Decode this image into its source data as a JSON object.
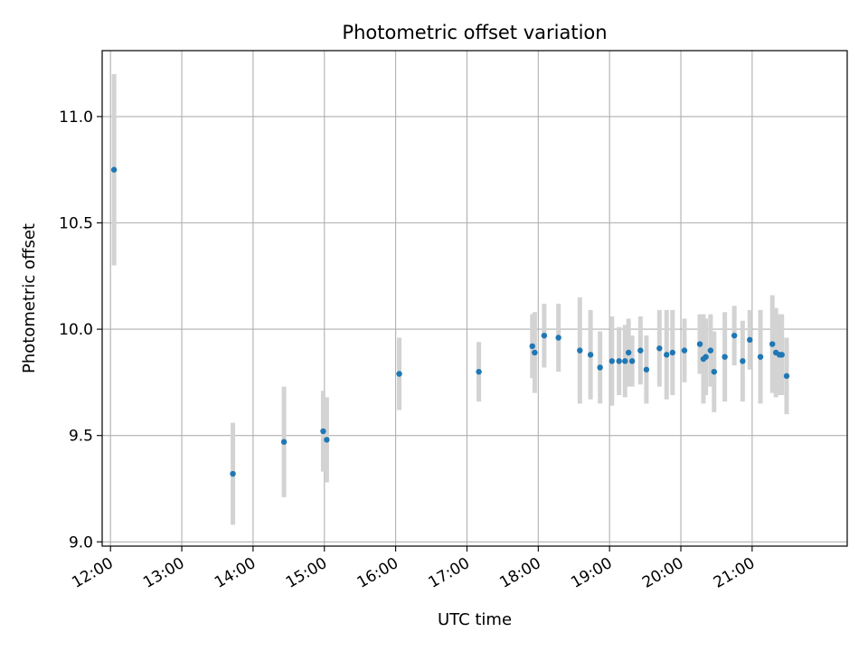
{
  "chart_data": {
    "type": "scatter",
    "title": "Photometric offset variation",
    "xlabel": "UTC time",
    "ylabel": "Photometric offset",
    "x_ticks": [
      "12:00",
      "13:00",
      "14:00",
      "15:00",
      "16:00",
      "17:00",
      "18:00",
      "19:00",
      "20:00",
      "21:00"
    ],
    "y_ticks": [
      "9.0",
      "9.5",
      "10.0",
      "10.5",
      "11.0"
    ],
    "xlim": [
      "11:53",
      "22:20"
    ],
    "ylim": [
      8.98,
      11.31
    ],
    "grid": true,
    "colors": {
      "marker": "#1f77b4",
      "errorbar": "#d3d3d3",
      "grid": "#b0b0b0"
    },
    "points": [
      {
        "x": "12:03",
        "y": 10.75,
        "err": 0.45
      },
      {
        "x": "13:43",
        "y": 9.32,
        "err": 0.24
      },
      {
        "x": "14:26",
        "y": 9.47,
        "err": 0.26
      },
      {
        "x": "14:59",
        "y": 9.52,
        "err": 0.19
      },
      {
        "x": "15:02",
        "y": 9.48,
        "err": 0.2
      },
      {
        "x": "16:03",
        "y": 9.79,
        "err": 0.17
      },
      {
        "x": "17:10",
        "y": 9.8,
        "err": 0.14
      },
      {
        "x": "17:55",
        "y": 9.92,
        "err": 0.15
      },
      {
        "x": "17:57",
        "y": 9.89,
        "err": 0.19
      },
      {
        "x": "18:05",
        "y": 9.97,
        "err": 0.15
      },
      {
        "x": "18:17",
        "y": 9.96,
        "err": 0.16
      },
      {
        "x": "18:35",
        "y": 9.9,
        "err": 0.25
      },
      {
        "x": "18:44",
        "y": 9.88,
        "err": 0.21
      },
      {
        "x": "18:52",
        "y": 9.82,
        "err": 0.17
      },
      {
        "x": "19:02",
        "y": 9.85,
        "err": 0.21
      },
      {
        "x": "19:08",
        "y": 9.85,
        "err": 0.16
      },
      {
        "x": "19:13",
        "y": 9.85,
        "err": 0.17
      },
      {
        "x": "19:16",
        "y": 9.89,
        "err": 0.16
      },
      {
        "x": "19:19",
        "y": 9.85,
        "err": 0.12
      },
      {
        "x": "19:26",
        "y": 9.9,
        "err": 0.16
      },
      {
        "x": "19:31",
        "y": 9.81,
        "err": 0.16
      },
      {
        "x": "19:42",
        "y": 9.91,
        "err": 0.18
      },
      {
        "x": "19:48",
        "y": 9.88,
        "err": 0.21
      },
      {
        "x": "19:53",
        "y": 9.89,
        "err": 0.2
      },
      {
        "x": "20:03",
        "y": 9.9,
        "err": 0.15
      },
      {
        "x": "20:16",
        "y": 9.93,
        "err": 0.14
      },
      {
        "x": "20:19",
        "y": 9.86,
        "err": 0.21
      },
      {
        "x": "20:21",
        "y": 9.87,
        "err": 0.18
      },
      {
        "x": "20:25",
        "y": 9.9,
        "err": 0.17
      },
      {
        "x": "20:28",
        "y": 9.8,
        "err": 0.19
      },
      {
        "x": "20:37",
        "y": 9.87,
        "err": 0.21
      },
      {
        "x": "20:45",
        "y": 9.97,
        "err": 0.14
      },
      {
        "x": "20:52",
        "y": 9.85,
        "err": 0.19
      },
      {
        "x": "20:58",
        "y": 9.95,
        "err": 0.14
      },
      {
        "x": "21:07",
        "y": 9.87,
        "err": 0.22
      },
      {
        "x": "21:17",
        "y": 9.93,
        "err": 0.23
      },
      {
        "x": "21:20",
        "y": 9.89,
        "err": 0.21
      },
      {
        "x": "21:23",
        "y": 9.88,
        "err": 0.19
      },
      {
        "x": "21:25",
        "y": 9.88,
        "err": 0.19
      },
      {
        "x": "21:29",
        "y": 9.78,
        "err": 0.18
      }
    ]
  }
}
